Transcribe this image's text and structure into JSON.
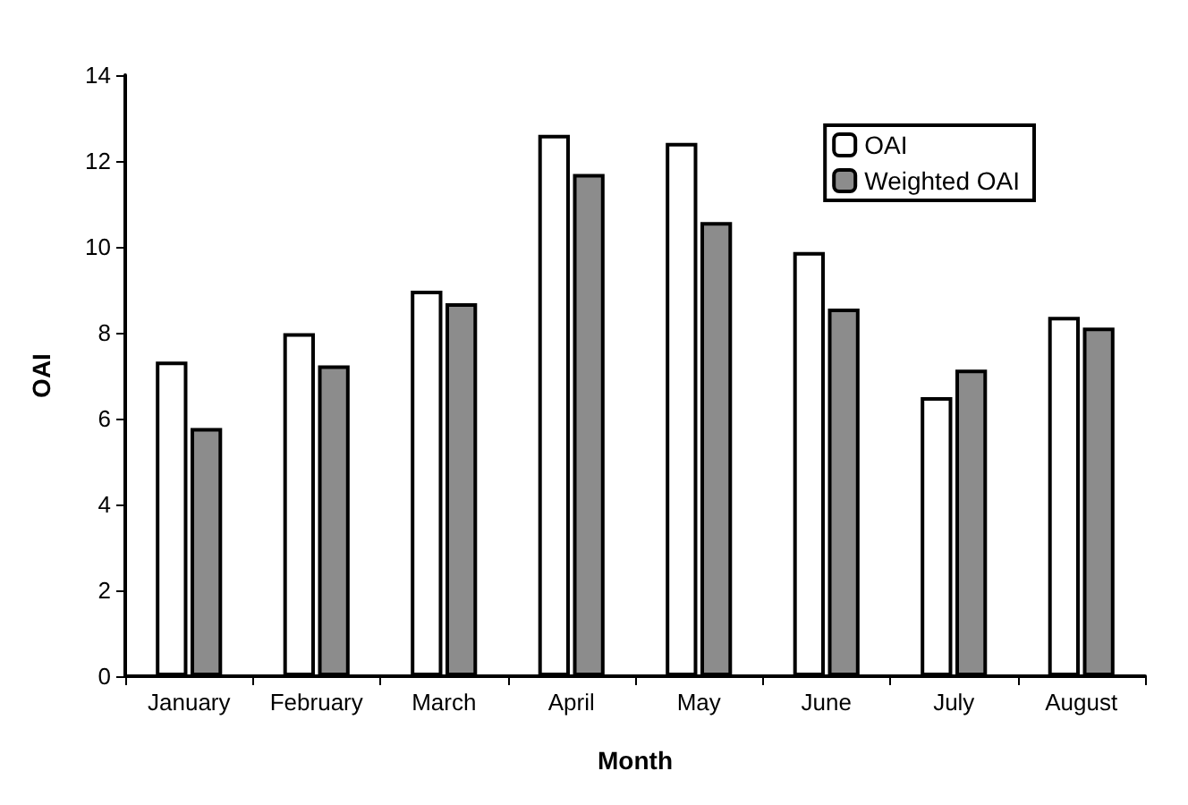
{
  "chart_data": {
    "type": "bar",
    "xlabel": "Month",
    "ylabel": "OAI",
    "categories": [
      "January",
      "February",
      "March",
      "April",
      "May",
      "June",
      "July",
      "August"
    ],
    "series": [
      {
        "name": "OAI",
        "color": "#ffffff",
        "values": [
          7.33,
          7.99,
          8.98,
          12.61,
          12.42,
          9.88,
          6.5,
          8.37
        ]
      },
      {
        "name": "Weighted OAI",
        "color": "#8c8c8c",
        "values": [
          5.78,
          7.24,
          8.69,
          11.7,
          10.58,
          8.56,
          7.14,
          8.12
        ]
      }
    ],
    "ylim": [
      0,
      14
    ],
    "yticks": [
      0,
      2,
      4,
      6,
      8,
      10,
      12,
      14
    ],
    "grid": false,
    "legend": "top right"
  }
}
